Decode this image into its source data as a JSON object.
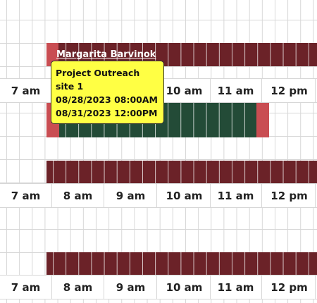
{
  "schedule": {
    "hours_row_1": [
      "7 am",
      "",
      "",
      "10 am",
      "11 am",
      "12 pm"
    ],
    "hours_row_2": [
      "7 am",
      "8 am",
      "9 am",
      "10 am",
      "11 am",
      "12 pm"
    ],
    "hours_row_3": [
      "7 am",
      "8 am",
      "9 am",
      "10 am",
      "11 am",
      "12 pm"
    ],
    "events": [
      {
        "owner": "Margarita Barvinok",
        "color": "#6b2228"
      },
      {
        "color": "#234b37",
        "edge_color": "#c94d52"
      },
      {
        "color": "#6b2228"
      },
      {
        "color": "#6b2228"
      }
    ]
  },
  "tooltip": {
    "title_line1": "Project Outreach",
    "title_line2": "site 1",
    "start": "08/28/2023 08:00AM",
    "end": "08/31/2023 12:00PM",
    "background": "#ffff44"
  }
}
